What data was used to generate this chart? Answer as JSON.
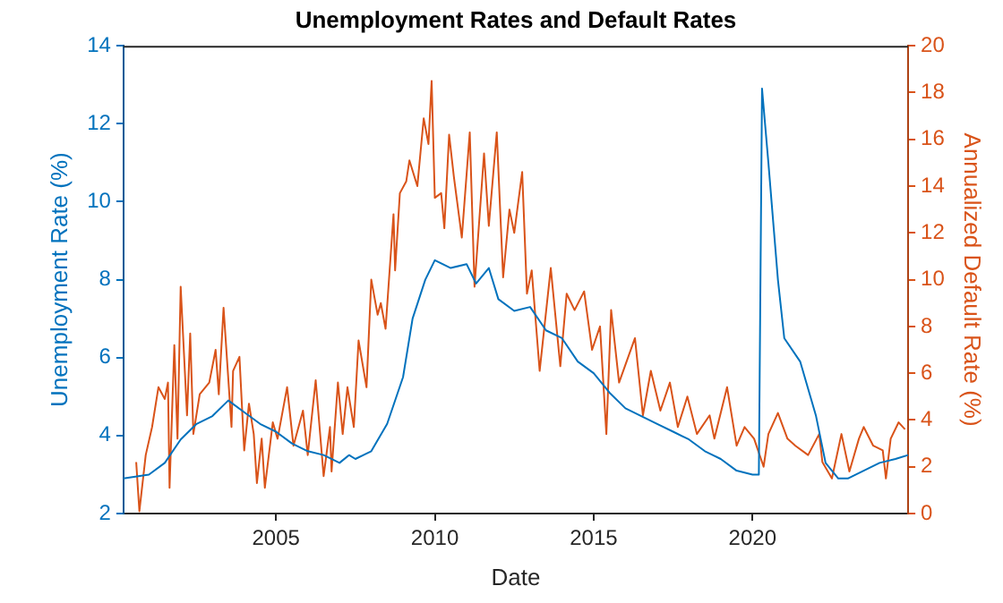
{
  "chart_data": {
    "type": "line",
    "title": "Unemployment Rates and Default Rates",
    "xlabel": "Date",
    "ylabel": "Unemployment Rate (%)",
    "y2label": "Annualized Default Rate (%)",
    "xlim": [
      2000.2,
      2024.9
    ],
    "xticks": [
      2005,
      2010,
      2015,
      2020
    ],
    "ylim": [
      2,
      14
    ],
    "yticks": [
      2,
      4,
      6,
      8,
      10,
      12,
      14
    ],
    "y2lim": [
      0,
      20
    ],
    "y2ticks": [
      0,
      2,
      4,
      6,
      8,
      10,
      12,
      14,
      16,
      18,
      20
    ],
    "grid": false,
    "legend": false,
    "marker": "none",
    "line_style": "solid",
    "series": [
      {
        "color": "#0072bd",
        "axis": "y",
        "x": [
          2000.2,
          2001.0,
          2001.5,
          2002.0,
          2002.5,
          2003.0,
          2003.5,
          2004.0,
          2004.5,
          2005.0,
          2005.5,
          2006.0,
          2006.5,
          2007.0,
          2007.3,
          2007.5,
          2008.0,
          2008.5,
          2009.0,
          2009.3,
          2009.7,
          2010.0,
          2010.5,
          2011.0,
          2011.3,
          2011.7,
          2012.0,
          2012.5,
          2013.0,
          2013.5,
          2014.0,
          2014.5,
          2015.0,
          2015.5,
          2016.0,
          2016.5,
          2017.0,
          2017.5,
          2018.0,
          2018.5,
          2019.0,
          2019.5,
          2020.0,
          2020.2,
          2020.3,
          2020.5,
          2020.8,
          2021.0,
          2021.5,
          2022.0,
          2022.3,
          2022.7,
          2023.0,
          2023.5,
          2024.0,
          2024.5,
          2024.9
        ],
        "values": [
          2.9,
          3.0,
          3.3,
          3.9,
          4.3,
          4.5,
          4.9,
          4.6,
          4.3,
          4.1,
          3.8,
          3.6,
          3.5,
          3.3,
          3.5,
          3.4,
          3.6,
          4.3,
          5.5,
          7.0,
          8.0,
          8.5,
          8.3,
          8.4,
          7.9,
          8.3,
          7.5,
          7.2,
          7.3,
          6.7,
          6.5,
          5.9,
          5.6,
          5.1,
          4.7,
          4.5,
          4.3,
          4.1,
          3.9,
          3.6,
          3.4,
          3.1,
          3.0,
          3.0,
          12.9,
          11.0,
          8.0,
          6.5,
          5.9,
          4.5,
          3.3,
          2.9,
          2.9,
          3.1,
          3.3,
          3.4,
          3.5
        ]
      },
      {
        "color": "#d95319",
        "axis": "y2",
        "x": [
          2000.6,
          2000.7,
          2000.9,
          2001.1,
          2001.3,
          2001.5,
          2001.6,
          2001.65,
          2001.8,
          2001.9,
          2002.0,
          2002.2,
          2002.3,
          2002.4,
          2002.6,
          2002.9,
          2003.1,
          2003.2,
          2003.35,
          2003.6,
          2003.65,
          2003.85,
          2004.0,
          2004.15,
          2004.3,
          2004.4,
          2004.55,
          2004.65,
          2004.9,
          2005.05,
          2005.35,
          2005.55,
          2005.85,
          2006.0,
          2006.25,
          2006.5,
          2006.7,
          2006.75,
          2006.95,
          2007.1,
          2007.25,
          2007.45,
          2007.6,
          2007.85,
          2008.0,
          2008.2,
          2008.3,
          2008.45,
          2008.7,
          2008.75,
          2008.9,
          2009.1,
          2009.2,
          2009.45,
          2009.65,
          2009.8,
          2009.9,
          2010.0,
          2010.2,
          2010.3,
          2010.45,
          2010.6,
          2010.85,
          2011.1,
          2011.25,
          2011.55,
          2011.7,
          2011.95,
          2012.15,
          2012.35,
          2012.5,
          2012.75,
          2012.9,
          2013.05,
          2013.3,
          2013.65,
          2013.95,
          2014.15,
          2014.4,
          2014.7,
          2014.95,
          2015.2,
          2015.4,
          2015.55,
          2015.8,
          2016.3,
          2016.55,
          2016.8,
          2017.1,
          2017.4,
          2017.65,
          2017.95,
          2018.25,
          2018.65,
          2018.8,
          2019.2,
          2019.5,
          2019.75,
          2020.05,
          2020.35,
          2020.5,
          2020.8,
          2021.1,
          2021.35,
          2021.75,
          2022.1,
          2022.2,
          2022.5,
          2022.8,
          2023.05,
          2023.35,
          2023.5,
          2023.8,
          2024.1,
          2024.2,
          2024.35,
          2024.6,
          2024.8
        ],
        "values": [
          2.2,
          0.1,
          2.5,
          3.7,
          5.4,
          4.9,
          5.6,
          1.1,
          7.2,
          3.2,
          9.7,
          4.2,
          7.7,
          3.4,
          5.1,
          5.6,
          7.0,
          5.1,
          8.8,
          3.7,
          6.1,
          6.7,
          2.7,
          4.7,
          3.4,
          1.3,
          3.2,
          1.1,
          3.9,
          3.2,
          5.4,
          2.9,
          4.4,
          2.5,
          5.7,
          1.6,
          3.7,
          1.8,
          5.6,
          3.4,
          5.4,
          3.7,
          7.4,
          5.4,
          10.0,
          8.5,
          9.0,
          7.9,
          12.8,
          10.4,
          13.7,
          14.2,
          15.1,
          14.0,
          16.9,
          15.8,
          18.5,
          13.5,
          13.7,
          12.2,
          16.2,
          14.4,
          11.8,
          16.3,
          9.7,
          15.4,
          12.3,
          16.3,
          10.1,
          13.0,
          12.0,
          14.6,
          9.4,
          10.4,
          6.1,
          10.5,
          6.3,
          9.4,
          8.7,
          9.5,
          7.0,
          8.0,
          3.4,
          8.7,
          5.6,
          7.5,
          4.2,
          6.1,
          4.4,
          5.6,
          3.7,
          5.0,
          3.4,
          4.2,
          3.2,
          5.4,
          2.9,
          3.7,
          3.2,
          2.0,
          3.4,
          4.3,
          3.2,
          2.9,
          2.5,
          3.4,
          2.2,
          1.5,
          3.4,
          1.8,
          3.2,
          3.7,
          2.9,
          2.7,
          1.5,
          3.2,
          3.9,
          3.6
        ]
      }
    ]
  }
}
